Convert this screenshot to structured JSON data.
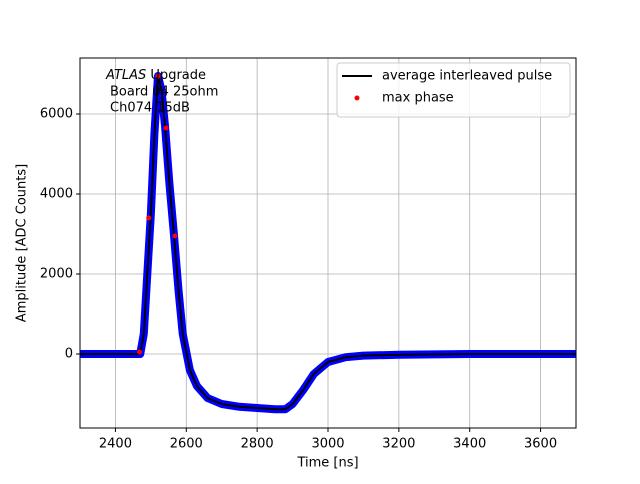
{
  "chart_data": {
    "type": "line",
    "x_label": "Time [ns]",
    "y_label": "Amplitude [ADC Counts]",
    "annotation": {
      "emphasis": "ATLAS",
      "lines": [
        "Upgrade",
        "Board 04 25ohm",
        "Ch074 15dB"
      ]
    },
    "x": [
      2300,
      2400,
      2470,
      2480,
      2490,
      2500,
      2510,
      2520,
      2530,
      2540,
      2552,
      2565,
      2578,
      2590,
      2610,
      2630,
      2660,
      2700,
      2750,
      2800,
      2850,
      2880,
      2900,
      2930,
      2960,
      3000,
      3050,
      3100,
      3200,
      3400,
      3700
    ],
    "series": [
      {
        "color": "#0000ff",
        "values": [
          0,
          0,
          0,
          500,
          2000,
          3500,
          5500,
          6950,
          6600,
          5700,
          4300,
          3000,
          1600,
          500,
          -400,
          -800,
          -1100,
          -1250,
          -1320,
          -1350,
          -1380,
          -1380,
          -1250,
          -900,
          -500,
          -200,
          -80,
          -40,
          -20,
          0,
          0
        ]
      },
      {
        "name": "average interleaved pulse",
        "color": "#000000",
        "values": [
          0,
          0,
          0,
          500,
          2000,
          3500,
          5500,
          6950,
          6600,
          5700,
          4300,
          3000,
          1600,
          500,
          -400,
          -800,
          -1100,
          -1250,
          -1320,
          -1350,
          -1380,
          -1380,
          -1250,
          -900,
          -500,
          -200,
          -80,
          -40,
          -20,
          0,
          0
        ]
      },
      {
        "name": "max phase",
        "color": "#ff0000",
        "marker": true,
        "x": [
          2468,
          2494,
          2520,
          2543,
          2568
        ],
        "values": [
          50,
          3400,
          6950,
          5650,
          2950
        ]
      }
    ],
    "xlim": [
      2300,
      3700
    ],
    "xticks": [
      2400,
      2600,
      2800,
      3000,
      3200,
      3400,
      3600
    ],
    "ylim": [
      -1850,
      7400
    ],
    "yticks": [
      0,
      2000,
      4000,
      6000
    ],
    "grid": true,
    "legend": "upper right"
  }
}
